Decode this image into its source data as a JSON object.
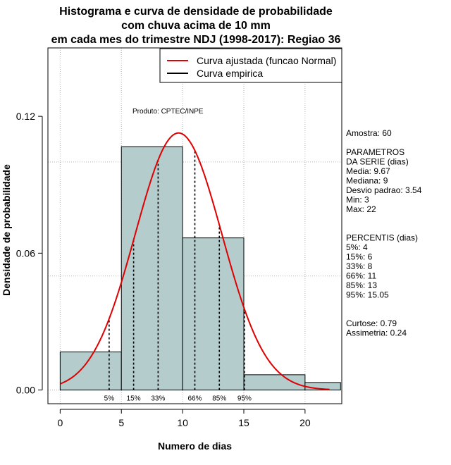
{
  "chart_data": {
    "type": "histogram",
    "title_lines": [
      "Histograma e curva de densidade de probabilidade",
      "com chuva acima de 10 mm",
      "em cada mes do trimestre NDJ (1998-2017): Regiao 36"
    ],
    "xlabel": "Numero de dias",
    "ylabel": "Densidade de probabilidade",
    "xlim": [
      -1,
      23
    ],
    "ylim": [
      -0.006,
      0.15
    ],
    "x_ticks": [
      0,
      5,
      10,
      15,
      20
    ],
    "y_ticks": [
      0.0,
      0.06,
      0.12
    ],
    "y_tick_labels": [
      "0.00",
      "0.06",
      "0.12"
    ],
    "grid": true,
    "bars": [
      {
        "x0": 0,
        "x1": 5,
        "density": 0.0167
      },
      {
        "x0": 5,
        "x1": 10,
        "density": 0.1067
      },
      {
        "x0": 10,
        "x1": 15,
        "density": 0.0667
      },
      {
        "x0": 15,
        "x1": 20,
        "density": 0.0067
      },
      {
        "x0": 20,
        "x1": 22.9,
        "density": 0.0033
      }
    ],
    "bar_fill": "#b4cccc",
    "normal_curve": {
      "mean": 9.67,
      "sd": 3.54,
      "x_range": [
        0,
        22
      ],
      "color": "#e00000"
    },
    "percentile_lines": [
      {
        "label": "5%",
        "x": 4
      },
      {
        "label": "15%",
        "x": 6
      },
      {
        "label": "33%",
        "x": 8
      },
      {
        "label": "66%",
        "x": 11
      },
      {
        "label": "85%",
        "x": 13
      },
      {
        "label": "95%",
        "x": 15.05
      }
    ],
    "legend": {
      "position": "top-right",
      "entries": [
        {
          "label": "Curva ajustada (funcao Normal)",
          "color": "#e00000"
        },
        {
          "label": "Curva empirica",
          "color": "#000000"
        }
      ]
    },
    "annotation": "Produto: CPTEC/INPE",
    "side_panel": [
      "Amostra: 60",
      "",
      " PARAMETROS",
      "DA SERIE (dias)",
      "  Media: 9.67",
      "  Mediana: 9",
      "  Desvio padrao: 3.54",
      "  Min: 3",
      "  Max: 22",
      "",
      "",
      "PERCENTIS (dias)",
      "   5%: 4",
      "  15%: 6",
      "  33%: 8",
      "  66%: 11",
      "  85%: 13",
      "  95%: 15.05",
      "",
      "",
      "   Curtose: 0.79",
      "Assimetria: 0.24"
    ]
  }
}
